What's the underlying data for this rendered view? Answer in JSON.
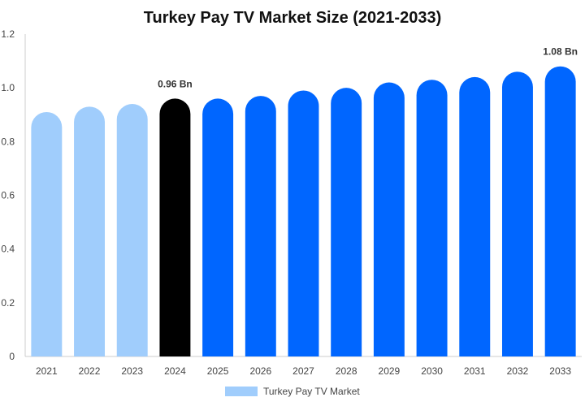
{
  "chart_data": {
    "type": "bar",
    "title": "Turkey Pay TV Market Size (2021-2033)",
    "categories": [
      "2021",
      "2022",
      "2023",
      "2024",
      "2025",
      "2026",
      "2027",
      "2028",
      "2029",
      "2030",
      "2031",
      "2032",
      "2033"
    ],
    "series": [
      {
        "name": "Turkey Pay TV Market",
        "values": [
          0.91,
          0.93,
          0.94,
          0.96,
          0.96,
          0.97,
          0.99,
          1.0,
          1.02,
          1.03,
          1.04,
          1.06,
          1.08
        ]
      }
    ],
    "data_labels": [
      {
        "category": "2024",
        "text": "0.96 Bn"
      },
      {
        "category": "2033",
        "text": "1.08 Bn"
      }
    ],
    "yticks": [
      "0",
      "0.2",
      "0.4",
      "0.6",
      "0.8",
      "1.0",
      "1.2"
    ],
    "ylim": [
      0,
      1.2
    ],
    "xlabel": "",
    "ylabel": "",
    "grid": false,
    "legend_position": "bottom",
    "colors": {
      "historical": "#a0cdfc",
      "current": "#000000",
      "forecast": "#0066ff",
      "axis": "#cccccc",
      "legend_swatch": "#a0cdfc"
    },
    "bar_groups": {
      "historical": [
        "2021",
        "2022",
        "2023"
      ],
      "current": [
        "2024"
      ],
      "forecast": [
        "2025",
        "2026",
        "2027",
        "2028",
        "2029",
        "2030",
        "2031",
        "2032",
        "2033"
      ]
    }
  }
}
